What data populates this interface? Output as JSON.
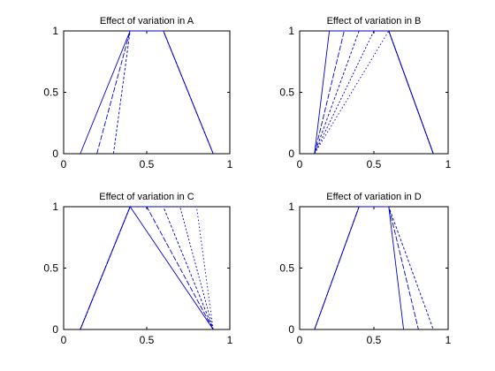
{
  "chart_data": [
    {
      "type": "line",
      "title": "Effect of variation in A",
      "xlim": [
        0,
        1
      ],
      "ylim": [
        0,
        1
      ],
      "xticks": [
        "0",
        "0.5",
        "1"
      ],
      "yticks": [
        "0",
        "0.5",
        "1"
      ],
      "line_color": "#0000cc",
      "series": [
        {
          "x": [
            0.1,
            0.4,
            0.6,
            0.9
          ],
          "y": [
            0,
            1,
            1,
            0
          ]
        },
        {
          "x": [
            0.2,
            0.4,
            0.6,
            0.9
          ],
          "y": [
            0,
            1,
            1,
            0
          ]
        },
        {
          "x": [
            0.3,
            0.4,
            0.6,
            0.9
          ],
          "y": [
            0,
            1,
            1,
            0
          ]
        }
      ]
    },
    {
      "type": "line",
      "title": "Effect of variation in B",
      "xlim": [
        0,
        1
      ],
      "ylim": [
        0,
        1
      ],
      "xticks": [
        "0",
        "0.5",
        "1"
      ],
      "yticks": [
        "0",
        "0.5",
        "1"
      ],
      "line_color": "#0000cc",
      "series": [
        {
          "x": [
            0.1,
            0.2,
            0.6,
            0.9
          ],
          "y": [
            0,
            1,
            1,
            0
          ]
        },
        {
          "x": [
            0.1,
            0.3,
            0.6,
            0.9
          ],
          "y": [
            0,
            1,
            1,
            0
          ]
        },
        {
          "x": [
            0.1,
            0.4,
            0.6,
            0.9
          ],
          "y": [
            0,
            1,
            1,
            0
          ]
        },
        {
          "x": [
            0.1,
            0.5,
            0.6,
            0.9
          ],
          "y": [
            0,
            1,
            1,
            0
          ]
        },
        {
          "x": [
            0.1,
            0.6,
            0.6,
            0.9
          ],
          "y": [
            0,
            1,
            1,
            0
          ]
        }
      ]
    },
    {
      "type": "line",
      "title": "Effect of variation in C",
      "xlim": [
        0,
        1
      ],
      "ylim": [
        0,
        1
      ],
      "xticks": [
        "0",
        "0.5",
        "1"
      ],
      "yticks": [
        "0",
        "0.5",
        "1"
      ],
      "line_color": "#0000cc",
      "series": [
        {
          "x": [
            0.1,
            0.4,
            0.4,
            0.9
          ],
          "y": [
            0,
            1,
            1,
            0
          ]
        },
        {
          "x": [
            0.1,
            0.4,
            0.5,
            0.9
          ],
          "y": [
            0,
            1,
            1,
            0
          ]
        },
        {
          "x": [
            0.1,
            0.4,
            0.6,
            0.9
          ],
          "y": [
            0,
            1,
            1,
            0
          ]
        },
        {
          "x": [
            0.1,
            0.4,
            0.7,
            0.9
          ],
          "y": [
            0,
            1,
            1,
            0
          ]
        },
        {
          "x": [
            0.1,
            0.4,
            0.8,
            0.9
          ],
          "y": [
            0,
            1,
            1,
            0
          ]
        }
      ]
    },
    {
      "type": "line",
      "title": "Effect of variation in D",
      "xlim": [
        0,
        1
      ],
      "ylim": [
        0,
        1
      ],
      "xticks": [
        "0",
        "0.5",
        "1"
      ],
      "yticks": [
        "0",
        "0.5",
        "1"
      ],
      "line_color": "#0000cc",
      "series": [
        {
          "x": [
            0.1,
            0.4,
            0.6,
            0.7
          ],
          "y": [
            0,
            1,
            1,
            0
          ]
        },
        {
          "x": [
            0.1,
            0.4,
            0.6,
            0.8
          ],
          "y": [
            0,
            1,
            1,
            0
          ]
        },
        {
          "x": [
            0.1,
            0.4,
            0.6,
            0.9
          ],
          "y": [
            0,
            1,
            1,
            0
          ]
        }
      ]
    }
  ]
}
